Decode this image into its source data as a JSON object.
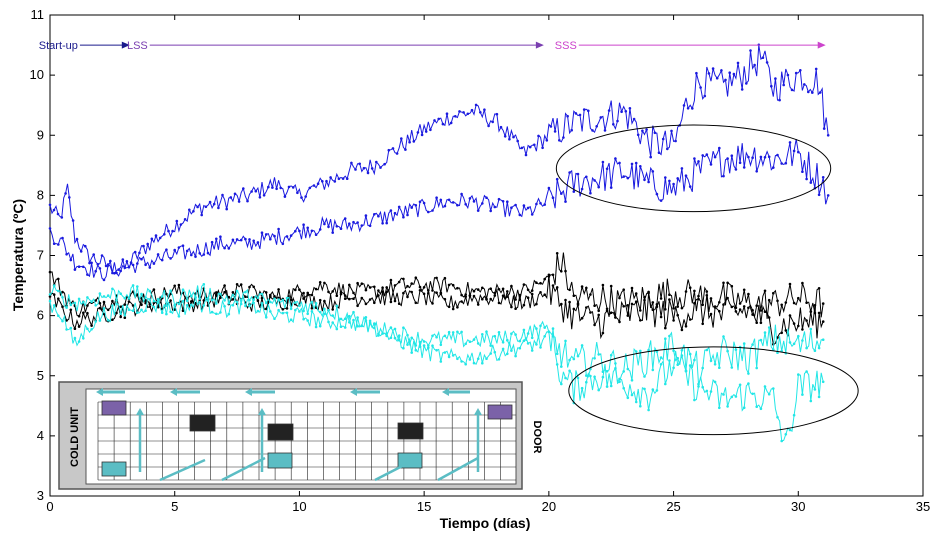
{
  "chart_data": {
    "type": "line",
    "xlabel": "Tiempo (días)",
    "ylabel": "Temperatura (ºC)",
    "xlim": [
      0,
      35
    ],
    "ylim": [
      3,
      11
    ],
    "x_ticks": [
      0,
      5,
      10,
      15,
      20,
      25,
      30,
      35
    ],
    "y_ticks": [
      3,
      4,
      5,
      6,
      7,
      8,
      9,
      10,
      11
    ],
    "grid": false,
    "colors": {
      "blue": "#1a1adf",
      "black": "#000000",
      "cyan": "#22e6e6",
      "startup": "#1a1a8c",
      "lss": "#7a3fb0",
      "sss": "#cc44cc"
    },
    "phases": [
      {
        "label": "Start-up",
        "x_from": 1.2,
        "x_to": 3.2
      },
      {
        "label": "LSS",
        "x_from": 4.0,
        "x_to": 19.8
      },
      {
        "label": "SSS",
        "x_from": 21.2,
        "x_to": 31.1
      }
    ],
    "phase_y": 10.5,
    "ellipses": [
      {
        "cx": 25.8,
        "cy": 8.45,
        "rx": 5.5,
        "ry": 0.72
      },
      {
        "cx": 26.6,
        "cy": 4.75,
        "rx": 5.8,
        "ry": 0.73
      }
    ],
    "series": [
      {
        "key": "blue_upper",
        "color_key": "blue",
        "x": [
          0,
          0.4,
          0.7,
          1.0,
          1.5,
          2.0,
          2.5,
          3,
          4,
          5,
          6,
          7,
          8,
          9,
          10,
          11,
          12,
          13,
          14,
          15,
          16,
          17,
          18,
          19,
          20,
          21,
          22,
          23,
          24,
          25,
          25.5,
          26,
          27,
          28,
          28.5,
          29,
          30,
          30.8,
          31.2
        ],
        "y": [
          7.8,
          7.6,
          8.1,
          7.3,
          7.0,
          6.9,
          6.8,
          6.8,
          7.2,
          7.5,
          7.8,
          7.9,
          8.0,
          8.2,
          8.0,
          8.2,
          8.4,
          8.5,
          8.8,
          9.1,
          9.3,
          9.4,
          9.2,
          8.7,
          9.0,
          9.2,
          9.3,
          9.4,
          8.9,
          8.8,
          9.5,
          9.9,
          9.8,
          10.1,
          10.3,
          9.8,
          10.0,
          9.9,
          9.0
        ]
      },
      {
        "key": "blue_lower",
        "color_key": "blue",
        "x": [
          0,
          0.5,
          1.0,
          2,
          3,
          4,
          5,
          6,
          7,
          8,
          9,
          10,
          11,
          12,
          13,
          14,
          15,
          16,
          17,
          18,
          19,
          20,
          21,
          22,
          23,
          24,
          25,
          26,
          27,
          28,
          29,
          30,
          31,
          31.2
        ],
        "y": [
          7.4,
          7.2,
          6.9,
          6.7,
          6.8,
          6.9,
          7.0,
          7.1,
          7.2,
          7.2,
          7.3,
          7.4,
          7.5,
          7.5,
          7.6,
          7.7,
          7.8,
          7.9,
          7.9,
          7.8,
          7.7,
          7.9,
          8.2,
          8.3,
          8.4,
          8.2,
          8.1,
          8.4,
          8.6,
          8.7,
          8.6,
          8.7,
          8.2,
          8.0
        ]
      },
      {
        "key": "black_a",
        "color_key": "black",
        "x": [
          0,
          0.5,
          1,
          2,
          3,
          4,
          5,
          6,
          7,
          8,
          9,
          10,
          11,
          12,
          13,
          14,
          15,
          16,
          17,
          18,
          19,
          20,
          20.5,
          21,
          22,
          23,
          24,
          25,
          26,
          27,
          28,
          29,
          30,
          31
        ],
        "y": [
          6.7,
          6.4,
          6.1,
          6.2,
          6.3,
          6.3,
          6.4,
          6.3,
          6.4,
          6.4,
          6.3,
          6.4,
          6.5,
          6.4,
          6.4,
          6.5,
          6.5,
          6.5,
          6.4,
          6.4,
          6.4,
          6.6,
          6.9,
          6.3,
          6.3,
          6.2,
          6.3,
          6.4,
          6.3,
          6.3,
          6.2,
          6.2,
          6.3,
          6.2
        ]
      },
      {
        "key": "black_b",
        "color_key": "black",
        "x": [
          0,
          0.5,
          1,
          2,
          3,
          4,
          5,
          6,
          7,
          8,
          9,
          10,
          11,
          12,
          13,
          14,
          15,
          16,
          17,
          18,
          19,
          20,
          21,
          22,
          23,
          24,
          25,
          26,
          27,
          28,
          29,
          30,
          31
        ],
        "y": [
          6.3,
          6.1,
          5.9,
          6.0,
          6.1,
          6.2,
          6.2,
          6.2,
          6.3,
          6.2,
          6.2,
          6.3,
          6.2,
          6.3,
          6.3,
          6.3,
          6.3,
          6.2,
          6.3,
          6.3,
          6.2,
          6.4,
          6.0,
          5.9,
          6.0,
          6.1,
          6.0,
          6.1,
          6.0,
          6.1,
          5.8,
          5.9,
          5.9
        ]
      },
      {
        "key": "cyan_a",
        "color_key": "cyan",
        "x": [
          0,
          0.5,
          1,
          1.5,
          2,
          3,
          4,
          5,
          6,
          7,
          8,
          9,
          10,
          11,
          12,
          13,
          14,
          15,
          16,
          17,
          18,
          19,
          20,
          20.5,
          21,
          22,
          23,
          24,
          25,
          26,
          27,
          28,
          29,
          29.5,
          30,
          31
        ],
        "y": [
          6.2,
          6.0,
          5.5,
          5.8,
          6.0,
          6.1,
          6.2,
          6.1,
          6.2,
          6.1,
          6.2,
          6.0,
          6.0,
          5.9,
          5.9,
          5.8,
          5.7,
          5.6,
          5.6,
          5.6,
          5.6,
          5.7,
          5.8,
          5.0,
          4.8,
          5.0,
          4.9,
          4.7,
          5.2,
          4.8,
          4.6,
          4.7,
          4.6,
          3.8,
          4.8,
          4.9
        ]
      },
      {
        "key": "cyan_b",
        "color_key": "cyan",
        "x": [
          0,
          1,
          2,
          3,
          4,
          5,
          6,
          7,
          8,
          9,
          10,
          11,
          12,
          13,
          14,
          15,
          16,
          17,
          18,
          19,
          20,
          21,
          22,
          23,
          24,
          25,
          26,
          27,
          28,
          29,
          30,
          31
        ],
        "y": [
          6.4,
          6.2,
          6.3,
          6.4,
          6.3,
          6.3,
          6.4,
          6.3,
          6.3,
          6.2,
          6.2,
          6.1,
          6.0,
          5.8,
          5.6,
          5.4,
          5.3,
          5.3,
          5.4,
          5.5,
          5.6,
          5.2,
          5.3,
          5.1,
          5.3,
          5.5,
          5.1,
          5.4,
          5.3,
          5.6,
          5.5,
          5.6
        ]
      }
    ]
  },
  "inset": {
    "cold_unit_label": "COLD UNIT",
    "door_label": "DOOR"
  }
}
